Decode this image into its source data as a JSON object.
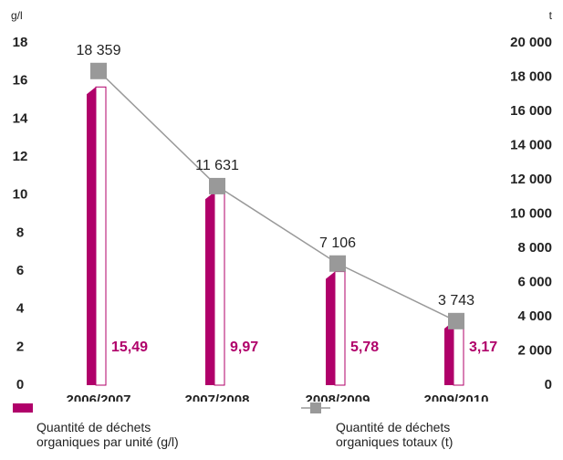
{
  "chart_data": {
    "type": "bar_line",
    "categories": [
      "2006/2007",
      "2007/2008",
      "2008/2009",
      "2009/2010"
    ],
    "ylabel": "g/l",
    "y2label": "t",
    "ylim": [
      0,
      18
    ],
    "yticks": [
      0,
      2,
      4,
      6,
      8,
      10,
      12,
      14,
      16,
      18
    ],
    "y2lim": [
      0,
      20000
    ],
    "y2ticks": [
      0,
      {
        "value": 2000,
        "label": "2 000"
      },
      {
        "value": 4000,
        "label": "4 000"
      },
      {
        "value": 6000,
        "label": "6 000"
      },
      {
        "value": 8000,
        "label": "8 000"
      },
      {
        "value": 10000,
        "label": "10 000"
      },
      {
        "value": 12000,
        "label": "12 000"
      },
      {
        "value": 14000,
        "label": "14 000"
      },
      {
        "value": 16000,
        "label": "16 000"
      },
      {
        "value": 18000,
        "label": "18 000"
      },
      {
        "value": 20000,
        "label": "20 000"
      }
    ],
    "series": [
      {
        "name": "Quantité de déchets organiques par unité (g/l)",
        "type": "bar",
        "color": "#b0006a",
        "values": [
          15.49,
          9.97,
          5.78,
          3.17
        ],
        "value_labels": [
          "15,49",
          "9,97",
          "5,78",
          "3,17"
        ]
      },
      {
        "name": "Quantité de déchets organiques totaux (t)",
        "type": "line",
        "axis": "y2",
        "color": "#999999",
        "values": [
          18359,
          11631,
          7106,
          3743
        ],
        "value_labels": [
          "18 359",
          "11 631",
          "7 106",
          "3 743"
        ]
      }
    ]
  }
}
